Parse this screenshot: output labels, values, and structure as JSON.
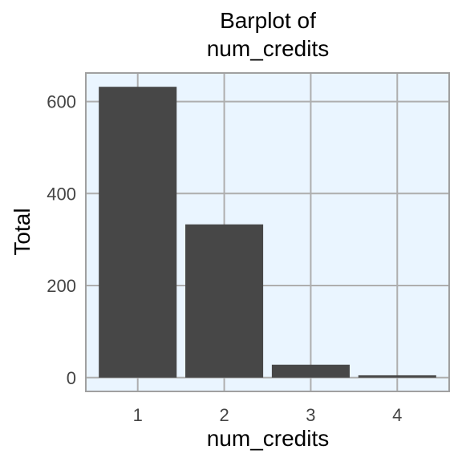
{
  "chart_data": {
    "type": "bar",
    "title_lines": [
      "Barplot of",
      "num_credits"
    ],
    "xlabel": "num_credits",
    "ylabel": "Total",
    "categories": [
      "1",
      "2",
      "3",
      "4"
    ],
    "values": [
      632,
      333,
      28,
      5
    ],
    "ylim": [
      -30,
      662
    ],
    "yticks": [
      0,
      200,
      400,
      600
    ],
    "ytick_labels": [
      "0",
      "200",
      "400",
      "600"
    ],
    "grid": true,
    "legend": "none",
    "colors": {
      "bar": "#474747",
      "panel_background": "#eaf5ff",
      "grid": "#aeaeae",
      "border": "#a0a0a0"
    }
  }
}
